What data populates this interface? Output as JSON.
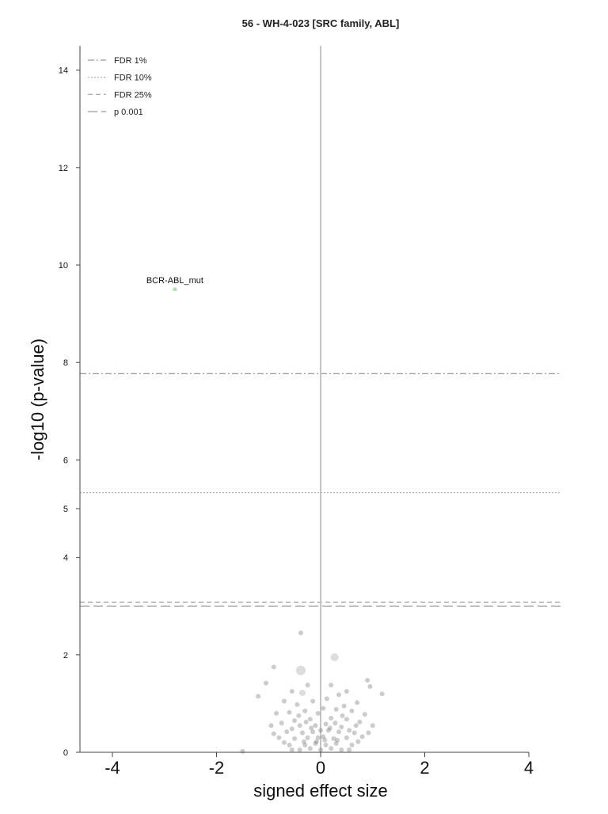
{
  "chart_data": {
    "type": "scatter",
    "title": "56 - WH-4-023 [SRC family, ABL]",
    "xlabel": "signed effect size",
    "ylabel": "-log10 (p-value)",
    "xlim": [
      -4.6,
      4.6
    ],
    "ylim": [
      0,
      14.5
    ],
    "x_ticks": [
      -4,
      -2,
      0,
      2,
      4
    ],
    "x_tick_labels": [
      "-4",
      "-2",
      "0",
      "2",
      "4"
    ],
    "y_ticks": [
      0,
      2,
      4,
      5,
      6,
      8,
      10,
      12,
      14
    ],
    "y_tick_labels": [
      "0",
      "2",
      "4",
      "5",
      "6",
      "8",
      "10",
      "12",
      "14"
    ],
    "grid": false,
    "legend_position": "top-left",
    "thresholds": [
      {
        "name": "FDR 1%",
        "y": 7.77,
        "style": "dashdot",
        "color": "#999999"
      },
      {
        "name": "FDR 10%",
        "y": 5.33,
        "style": "dotted",
        "color": "#aaaaaa"
      },
      {
        "name": "FDR 25%",
        "y": 3.08,
        "style": "dashed",
        "color": "#aaaaaa"
      },
      {
        "name": "p 0.001",
        "y": 3.0,
        "style": "longdash",
        "color": "#999999"
      }
    ],
    "highlight": {
      "label": "BCR-ABL_mut",
      "x": -2.8,
      "y": 9.5,
      "color": "#a8e6a0"
    },
    "points": [
      {
        "x": -0.38,
        "y": 2.45,
        "s": 3
      },
      {
        "x": -0.38,
        "y": 1.68,
        "s": 6
      },
      {
        "x": 0.27,
        "y": 1.95,
        "s": 5
      },
      {
        "x": -0.9,
        "y": 1.75,
        "s": 3
      },
      {
        "x": -1.05,
        "y": 1.42,
        "s": 3
      },
      {
        "x": -1.2,
        "y": 1.15,
        "s": 3
      },
      {
        "x": 1.18,
        "y": 1.2,
        "s": 3
      },
      {
        "x": 0.9,
        "y": 1.48,
        "s": 3
      },
      {
        "x": 0.95,
        "y": 1.35,
        "s": 3
      },
      {
        "x": -0.25,
        "y": 1.38,
        "s": 3
      },
      {
        "x": 0.2,
        "y": 1.38,
        "s": 3
      },
      {
        "x": -0.55,
        "y": 1.25,
        "s": 3
      },
      {
        "x": 0.5,
        "y": 1.25,
        "s": 3
      },
      {
        "x": -0.35,
        "y": 1.22,
        "s": 4
      },
      {
        "x": 0.35,
        "y": 1.18,
        "s": 3
      },
      {
        "x": -0.7,
        "y": 1.05,
        "s": 3
      },
      {
        "x": 0.7,
        "y": 1.02,
        "s": 3
      },
      {
        "x": -0.15,
        "y": 1.05,
        "s": 3
      },
      {
        "x": 0.12,
        "y": 1.1,
        "s": 3
      },
      {
        "x": -0.45,
        "y": 0.98,
        "s": 3
      },
      {
        "x": 0.45,
        "y": 0.95,
        "s": 3
      },
      {
        "x": -0.85,
        "y": 0.8,
        "s": 3
      },
      {
        "x": 0.85,
        "y": 0.78,
        "s": 3
      },
      {
        "x": -0.6,
        "y": 0.82,
        "s": 3
      },
      {
        "x": 0.6,
        "y": 0.85,
        "s": 3
      },
      {
        "x": -0.3,
        "y": 0.85,
        "s": 3
      },
      {
        "x": 0.3,
        "y": 0.88,
        "s": 3
      },
      {
        "x": 0.05,
        "y": 0.9,
        "s": 3
      },
      {
        "x": -0.05,
        "y": 0.8,
        "s": 3
      },
      {
        "x": -0.95,
        "y": 0.55,
        "s": 3
      },
      {
        "x": 1.0,
        "y": 0.55,
        "s": 3
      },
      {
        "x": -0.75,
        "y": 0.6,
        "s": 3
      },
      {
        "x": 0.75,
        "y": 0.62,
        "s": 3
      },
      {
        "x": -0.5,
        "y": 0.65,
        "s": 3
      },
      {
        "x": 0.5,
        "y": 0.68,
        "s": 3
      },
      {
        "x": -0.2,
        "y": 0.68,
        "s": 3
      },
      {
        "x": 0.2,
        "y": 0.7,
        "s": 3
      },
      {
        "x": -0.4,
        "y": 0.55,
        "s": 3
      },
      {
        "x": 0.4,
        "y": 0.52,
        "s": 3
      },
      {
        "x": -0.1,
        "y": 0.55,
        "s": 3
      },
      {
        "x": 0.1,
        "y": 0.58,
        "s": 3
      },
      {
        "x": -0.65,
        "y": 0.42,
        "s": 3
      },
      {
        "x": 0.65,
        "y": 0.4,
        "s": 3
      },
      {
        "x": -0.35,
        "y": 0.4,
        "s": 3
      },
      {
        "x": 0.35,
        "y": 0.42,
        "s": 3
      },
      {
        "x": -0.15,
        "y": 0.42,
        "s": 3
      },
      {
        "x": 0.15,
        "y": 0.45,
        "s": 3
      },
      {
        "x": 0.0,
        "y": 0.45,
        "s": 3
      },
      {
        "x": -0.8,
        "y": 0.3,
        "s": 3
      },
      {
        "x": 0.8,
        "y": 0.32,
        "s": 3
      },
      {
        "x": -0.5,
        "y": 0.28,
        "s": 3
      },
      {
        "x": 0.5,
        "y": 0.3,
        "s": 3
      },
      {
        "x": -0.25,
        "y": 0.3,
        "s": 3
      },
      {
        "x": 0.25,
        "y": 0.28,
        "s": 3
      },
      {
        "x": -0.05,
        "y": 0.3,
        "s": 3
      },
      {
        "x": 0.05,
        "y": 0.32,
        "s": 3
      },
      {
        "x": -0.6,
        "y": 0.15,
        "s": 3
      },
      {
        "x": 0.6,
        "y": 0.15,
        "s": 3
      },
      {
        "x": -0.3,
        "y": 0.15,
        "s": 3
      },
      {
        "x": 0.3,
        "y": 0.18,
        "s": 3
      },
      {
        "x": -0.1,
        "y": 0.18,
        "s": 3
      },
      {
        "x": 0.1,
        "y": 0.15,
        "s": 3
      },
      {
        "x": -1.5,
        "y": 0.02,
        "s": 3
      },
      {
        "x": -0.4,
        "y": 0.05,
        "s": 3
      },
      {
        "x": 0.4,
        "y": 0.05,
        "s": 3
      },
      {
        "x": 0.0,
        "y": 0.05,
        "s": 3
      },
      {
        "x": -0.2,
        "y": 0.08,
        "s": 3
      },
      {
        "x": 0.2,
        "y": 0.08,
        "s": 3
      },
      {
        "x": 0.55,
        "y": 0.05,
        "s": 3
      },
      {
        "x": -0.55,
        "y": 0.05,
        "s": 3
      },
      {
        "x": -0.42,
        "y": 0.75,
        "s": 3
      },
      {
        "x": 0.42,
        "y": 0.75,
        "s": 3
      },
      {
        "x": -0.18,
        "y": 0.5,
        "s": 3
      },
      {
        "x": 0.18,
        "y": 0.5,
        "s": 3
      },
      {
        "x": -0.28,
        "y": 0.62,
        "s": 3
      },
      {
        "x": 0.28,
        "y": 0.6,
        "s": 3
      },
      {
        "x": -0.08,
        "y": 0.22,
        "s": 3
      },
      {
        "x": 0.08,
        "y": 0.25,
        "s": 3
      },
      {
        "x": -0.32,
        "y": 0.22,
        "s": 3
      },
      {
        "x": 0.32,
        "y": 0.25,
        "s": 3
      },
      {
        "x": 0.55,
        "y": 0.45,
        "s": 3
      },
      {
        "x": -0.55,
        "y": 0.48,
        "s": 3
      },
      {
        "x": 0.68,
        "y": 0.55,
        "s": 3
      },
      {
        "x": -0.7,
        "y": 0.2,
        "s": 3
      },
      {
        "x": 0.72,
        "y": 0.22,
        "s": 3
      },
      {
        "x": -0.9,
        "y": 0.38,
        "s": 3
      },
      {
        "x": 0.92,
        "y": 0.4,
        "s": 3
      }
    ]
  }
}
